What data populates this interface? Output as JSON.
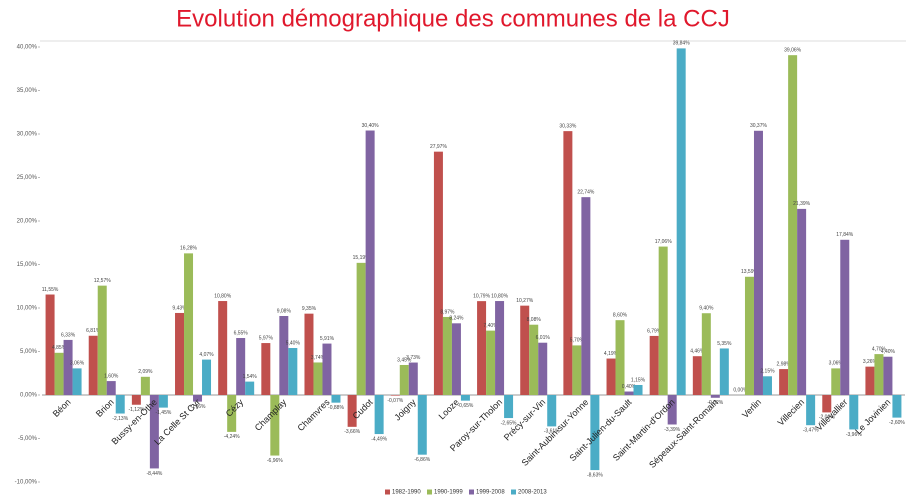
{
  "chart_data": {
    "type": "bar",
    "title": "Evolution démographique des communes de la CCJ",
    "categories": [
      "Béon",
      "Brion",
      "Bussy-en-Othe",
      "La Celle St Cyr",
      "Cézy",
      "Champlay",
      "Chamvres",
      "Cudot",
      "Joigny",
      "Looze",
      "Paroy-sur-Tholon",
      "Précy-sur-Vin",
      "Saint-Aubin-sur-Yonne",
      "Saint-Julien-du-Sault",
      "Saint-Martin-d'Ordon",
      "Sépeaux-Saint-Romain",
      "Verlin",
      "Villecien",
      "Villevallier",
      "Le Jovinien"
    ],
    "series": [
      {
        "name": "1982-1990",
        "color": "#c0504d",
        "values": [
          11.55,
          6.81,
          -1.12,
          9.43,
          10.8,
          5.97,
          9.35,
          -3.66,
          -0.07,
          27.97,
          10.79,
          10.27,
          30.33,
          4.19,
          6.79,
          4.46,
          0,
          2.98,
          -2,
          3.26
        ],
        "value_labels": [
          "11,55%",
          "6,81%",
          "-1,12%",
          "9,43%",
          "10,80%",
          "5,97%",
          "9,35%",
          "-3,66%",
          "-0,07%",
          "27,97%",
          "10,79%",
          "10,27%",
          "30,33%",
          "4,19%",
          "6,79%",
          "4,46%",
          "0,00%",
          "2,98%",
          "-2,00%",
          "3,26%"
        ]
      },
      {
        "name": "1990-1999",
        "color": "#9bbb59",
        "values": [
          4.85,
          12.57,
          2.09,
          16.28,
          -4.24,
          -6.96,
          3.74,
          15.19,
          3.45,
          8.97,
          7.4,
          8.08,
          5.7,
          8.6,
          17.06,
          9.4,
          13.59,
          39.06,
          3.06,
          4.7
        ],
        "value_labels": [
          "4,85%",
          "12,57%",
          "2,09%",
          "16,28%",
          "-4,24%",
          "-6,96%",
          "3,74%",
          "15,19%",
          "3,45%",
          "8,97%",
          "7,40%",
          "8,08%",
          "5,70%",
          "8,60%",
          "17,06%",
          "9,40%",
          "13,59%",
          "39,06%",
          "3,06%",
          "4,70%"
        ]
      },
      {
        "name": "1999-2008",
        "color": "#8064a2",
        "values": [
          6.33,
          1.6,
          -8.44,
          -0.76,
          6.55,
          9.08,
          5.91,
          30.4,
          3.73,
          8.24,
          10.8,
          6.01,
          22.74,
          0.4,
          -3.39,
          -0.32,
          30.37,
          21.39,
          17.84,
          4.4
        ],
        "value_labels": [
          "6,33%",
          "1,60%",
          "-8,44%",
          "-0,76%",
          "6,55%",
          "9,08%",
          "5,91%",
          "30,40%",
          "3,73%",
          "8,24%",
          "10,80%",
          "6,01%",
          "22,74%",
          "0,40%",
          "-3,39%",
          "-0,32%",
          "30,37%",
          "21,39%",
          "17,84%",
          "4,40%"
        ]
      },
      {
        "name": "2008-2013",
        "color": "#4bacc6",
        "values": [
          3.06,
          -2.13,
          -1.45,
          4.07,
          1.54,
          5.4,
          -0.88,
          -4.49,
          -6.86,
          -0.65,
          -2.65,
          -3.61,
          -8.63,
          1.15,
          39.84,
          5.35,
          2.15,
          -3.47,
          -3.96,
          -2.6
        ],
        "value_labels": [
          "3,06%",
          "-2,13%",
          "-1,45%",
          "4,07%",
          "1,54%",
          "5,40%",
          "-0,88%",
          "-4,49%",
          "-6,86%",
          "-0,65%",
          "-2,65%",
          "-3,61%",
          "-8,63%",
          "1,15%",
          "39,84%",
          "5,35%",
          "2,15%",
          "-3,47%",
          "-3,96%",
          "-2,60%"
        ]
      }
    ],
    "ylim": [
      -10,
      40
    ],
    "yticks": [
      {
        "value": -10,
        "label": "-10,00%"
      },
      {
        "value": -5,
        "label": "-5,00%"
      },
      {
        "value": 0,
        "label": "0,00%"
      },
      {
        "value": 5,
        "label": "5,00%"
      },
      {
        "value": 10,
        "label": "10,00%"
      },
      {
        "value": 15,
        "label": "15,00%"
      },
      {
        "value": 20,
        "label": "20,00%"
      },
      {
        "value": 25,
        "label": "25,00%"
      },
      {
        "value": 30,
        "label": "30,00%"
      },
      {
        "value": 35,
        "label": "35,00%"
      },
      {
        "value": 40,
        "label": "40,00%"
      }
    ],
    "grid": false,
    "legend": "bottom"
  }
}
